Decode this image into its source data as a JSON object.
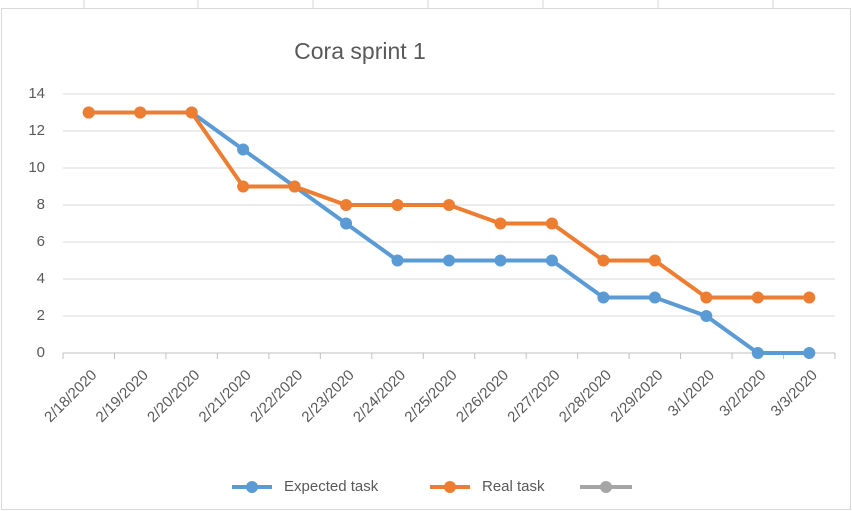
{
  "chart_data": {
    "type": "line",
    "title": "Cora sprint 1",
    "categories": [
      "2/18/2020",
      "2/19/2020",
      "2/20/2020",
      "2/21/2020",
      "2/22/2020",
      "2/23/2020",
      "2/24/2020",
      "2/25/2020",
      "2/26/2020",
      "2/27/2020",
      "2/28/2020",
      "2/29/2020",
      "3/1/2020",
      "3/2/2020",
      "3/3/2020"
    ],
    "series": [
      {
        "name": "Expected task",
        "color": "#5b9bd5",
        "values": [
          13,
          13,
          13,
          11,
          9,
          7,
          5,
          5,
          5,
          5,
          3,
          3,
          2,
          0,
          0
        ]
      },
      {
        "name": "Real task",
        "color": "#ed7d31",
        "values": [
          13,
          13,
          13,
          9,
          9,
          8,
          8,
          8,
          7,
          7,
          5,
          5,
          3,
          3,
          3
        ]
      }
    ],
    "ylim": [
      0,
      14
    ],
    "yticks": [
      0,
      2,
      4,
      6,
      8,
      10,
      12,
      14
    ],
    "grid": true,
    "legend": "bottom"
  }
}
